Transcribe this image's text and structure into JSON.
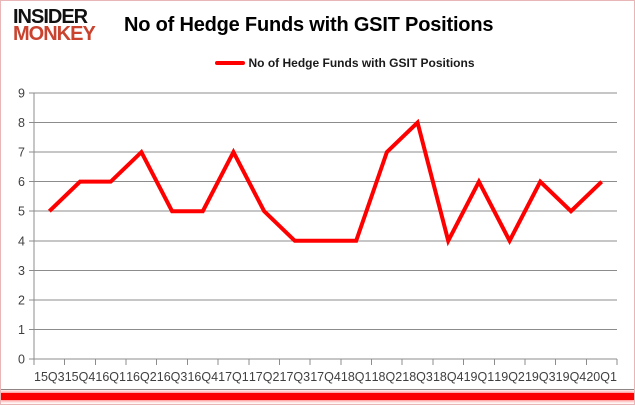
{
  "logo": {
    "line1": "INSIDER",
    "line2": "MONKEY"
  },
  "title": "No of Hedge Funds with GSIT Positions",
  "legend": {
    "label": "No of Hedge Funds with GSIT Positions"
  },
  "chart_data": {
    "type": "line",
    "title": "No of Hedge Funds with GSIT Positions",
    "categories": [
      "15Q3",
      "15Q4",
      "16Q1",
      "16Q2",
      "16Q3",
      "16Q4",
      "17Q1",
      "17Q2",
      "17Q3",
      "17Q4",
      "18Q1",
      "18Q2",
      "18Q3",
      "18Q4",
      "19Q1",
      "19Q2",
      "19Q3",
      "19Q4",
      "20Q1"
    ],
    "series": [
      {
        "name": "No of Hedge Funds with GSIT Positions",
        "color": "#ff0000",
        "values": [
          5,
          6,
          6,
          7,
          5,
          5,
          7,
          5,
          4,
          4,
          4,
          7,
          8,
          4,
          6,
          4,
          6,
          5,
          6
        ]
      }
    ],
    "xlabel": "",
    "ylabel": "",
    "ylim": [
      0,
      9
    ],
    "yticks": [
      0,
      1,
      2,
      3,
      4,
      5,
      6,
      7,
      8,
      9
    ],
    "grid": "horizontal",
    "legend_position": "top-center"
  },
  "colors": {
    "series_red": "#ff0000",
    "logo_black": "#111111",
    "logo_red": "#c9432f",
    "grid_gray": "#8c8c8c",
    "tick_text": "#3f3f3f",
    "border_pink": "#e8b6b6",
    "footer_rule_gray": "#8a8a8a",
    "footer_bar_red": "#fb0000",
    "background": "#ffffff"
  }
}
